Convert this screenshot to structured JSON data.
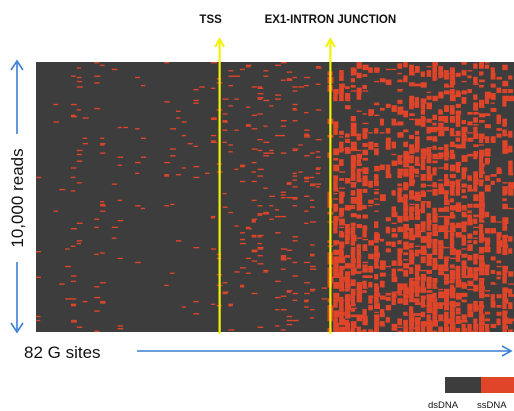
{
  "chart_data": {
    "type": "heatmap",
    "rows_label": "10,000 reads",
    "columns_label": "82 G sites",
    "n_rows": 10000,
    "n_columns": 82,
    "annotations": [
      {
        "label": "TSS",
        "column": 31
      },
      {
        "label": "EX1-INTRON JUNCTION",
        "column": 50
      }
    ],
    "legend": [
      {
        "label": "dsDNA",
        "color": "#3d3d3d"
      },
      {
        "label": "ssDNA",
        "color": "#e0452a"
      }
    ],
    "colors": {
      "dsDNA": "#3d3d3d",
      "ssDNA": "#e0452a",
      "axis_arrow": "#3b7fd4",
      "marker_line": "#f2f20a"
    }
  }
}
